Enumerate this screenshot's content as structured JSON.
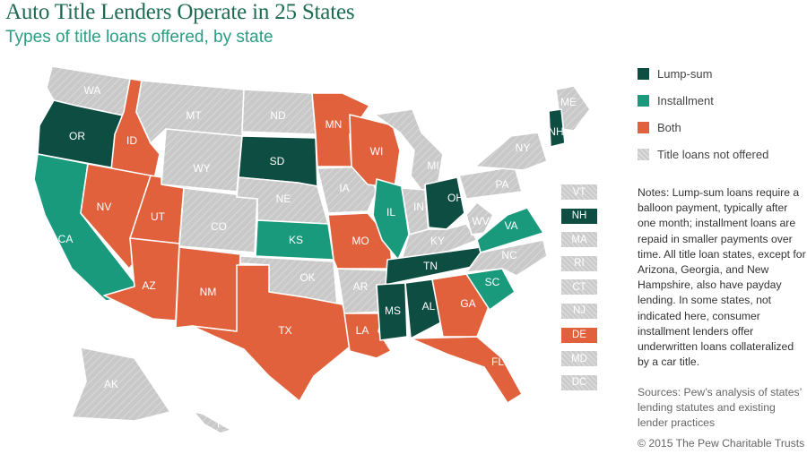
{
  "title": "Auto Title Lenders Operate in 25 States",
  "subtitle": "Types of title loans offered, by state",
  "colors": {
    "lump_sum": "#0e4d41",
    "installment": "#1a9a7d",
    "both": "#e0613b",
    "none": "#c9c9c9"
  },
  "legend": [
    {
      "category": "lump_sum",
      "label": "Lump-sum"
    },
    {
      "category": "installment",
      "label": "Installment"
    },
    {
      "category": "both",
      "label": "Both"
    },
    {
      "category": "none",
      "label": "Title loans not offered"
    }
  ],
  "states": [
    {
      "abbr": "WA",
      "category": "none"
    },
    {
      "abbr": "OR",
      "category": "lump_sum"
    },
    {
      "abbr": "CA",
      "category": "installment"
    },
    {
      "abbr": "ID",
      "category": "both"
    },
    {
      "abbr": "NV",
      "category": "both"
    },
    {
      "abbr": "MT",
      "category": "none"
    },
    {
      "abbr": "WY",
      "category": "none"
    },
    {
      "abbr": "UT",
      "category": "both"
    },
    {
      "abbr": "AZ",
      "category": "both"
    },
    {
      "abbr": "CO",
      "category": "none"
    },
    {
      "abbr": "NM",
      "category": "both"
    },
    {
      "abbr": "ND",
      "category": "none"
    },
    {
      "abbr": "SD",
      "category": "lump_sum"
    },
    {
      "abbr": "NE",
      "category": "none"
    },
    {
      "abbr": "KS",
      "category": "installment"
    },
    {
      "abbr": "OK",
      "category": "none"
    },
    {
      "abbr": "TX",
      "category": "both"
    },
    {
      "abbr": "MN",
      "category": "both"
    },
    {
      "abbr": "IA",
      "category": "none"
    },
    {
      "abbr": "MO",
      "category": "both"
    },
    {
      "abbr": "AR",
      "category": "none"
    },
    {
      "abbr": "LA",
      "category": "both"
    },
    {
      "abbr": "WI",
      "category": "both"
    },
    {
      "abbr": "IL",
      "category": "installment"
    },
    {
      "abbr": "MI",
      "category": "none"
    },
    {
      "abbr": "IN",
      "category": "none"
    },
    {
      "abbr": "OH",
      "category": "lump_sum"
    },
    {
      "abbr": "KY",
      "category": "none"
    },
    {
      "abbr": "TN",
      "category": "lump_sum"
    },
    {
      "abbr": "MS",
      "category": "lump_sum"
    },
    {
      "abbr": "AL",
      "category": "lump_sum"
    },
    {
      "abbr": "GA",
      "category": "both"
    },
    {
      "abbr": "FL",
      "category": "both"
    },
    {
      "abbr": "SC",
      "category": "installment"
    },
    {
      "abbr": "NC",
      "category": "none"
    },
    {
      "abbr": "VA",
      "category": "installment"
    },
    {
      "abbr": "WV",
      "category": "none"
    },
    {
      "abbr": "PA",
      "category": "none"
    },
    {
      "abbr": "NY",
      "category": "none"
    },
    {
      "abbr": "ME",
      "category": "none"
    },
    {
      "abbr": "NH",
      "category": "lump_sum"
    },
    {
      "abbr": "AK",
      "category": "none"
    },
    {
      "abbr": "HI",
      "category": "none"
    }
  ],
  "small_states": [
    {
      "abbr": "VT",
      "category": "none"
    },
    {
      "abbr": "NH",
      "category": "lump_sum"
    },
    {
      "abbr": "MA",
      "category": "none"
    },
    {
      "abbr": "RI",
      "category": "none"
    },
    {
      "abbr": "CT",
      "category": "none"
    },
    {
      "abbr": "NJ",
      "category": "none"
    },
    {
      "abbr": "DE",
      "category": "both"
    },
    {
      "abbr": "MD",
      "category": "none"
    },
    {
      "abbr": "DC",
      "category": "none"
    }
  ],
  "notes": "Notes: Lump-sum loans require a balloon payment, typically after one month; installment loans are repaid in smaller payments over time. All title loan states, except for Arizona, Georgia, and New Hampshire, also have payday lending. In some states, not indicated here, consumer installment lenders offer underwritten loans collateralized by a car title.",
  "sources": "Sources: Pew’s analysis of states’ lending statutes and existing lender practices",
  "copyright": "© 2015 The Pew Charitable Trusts"
}
